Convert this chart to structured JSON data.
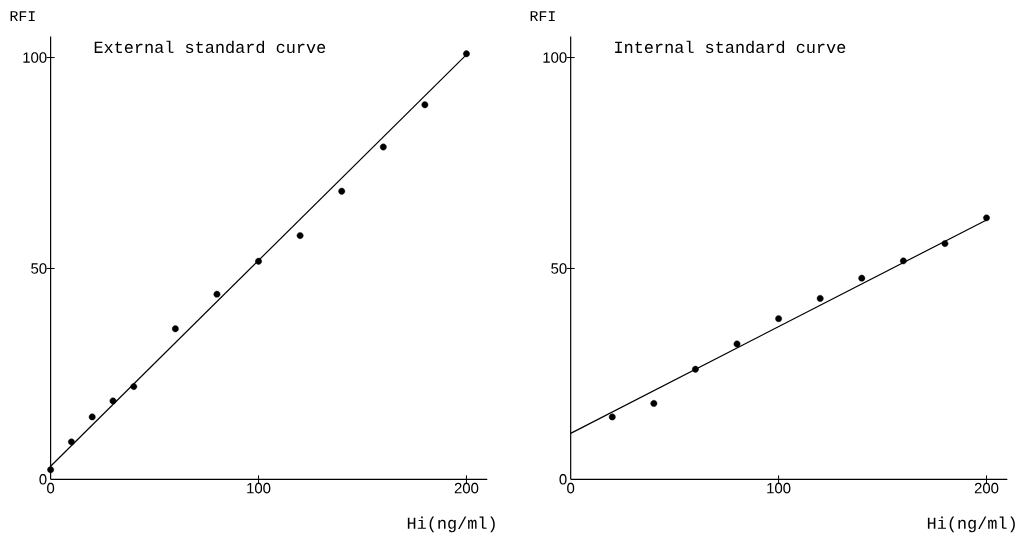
{
  "chart_data": [
    {
      "type": "scatter",
      "title": "External standard curve",
      "xlabel": "Hi(ng/ml)",
      "ylabel": "RFI",
      "xlim": [
        0,
        210
      ],
      "ylim": [
        0,
        105
      ],
      "xticks": [
        0,
        100,
        200
      ],
      "yticks": [
        0,
        50,
        100
      ],
      "series": [
        {
          "color": "#000000",
          "marker": "circle",
          "x": [
            0,
            10,
            20,
            30,
            40,
            60,
            80,
            100,
            120,
            140,
            160,
            180,
            200
          ],
          "values": [
            2.3,
            8.9,
            14.8,
            18.6,
            22.0,
            35.7,
            43.9,
            51.7,
            57.8,
            68.3,
            78.8,
            88.8,
            100.9
          ]
        },
        {
          "type": "line",
          "color": "#000000",
          "marker": "none",
          "x": [
            0,
            200
          ],
          "values": [
            3.1,
            100.7
          ]
        }
      ]
    },
    {
      "type": "scatter",
      "title": "Internal standard curve",
      "xlabel": "Hi(ng/ml)",
      "ylabel": "RFI",
      "xlim": [
        0,
        210
      ],
      "ylim": [
        0,
        105
      ],
      "xticks": [
        0,
        100,
        200
      ],
      "yticks": [
        0,
        50,
        100
      ],
      "series": [
        {
          "color": "#000000",
          "marker": "circle",
          "x": [
            20,
            40,
            60,
            80,
            100,
            120,
            140,
            160,
            180,
            200
          ],
          "values": [
            14.8,
            18.0,
            26.1,
            32.1,
            38.1,
            42.9,
            47.7,
            51.8,
            55.9,
            62.0
          ]
        },
        {
          "type": "line",
          "color": "#000000",
          "marker": "none",
          "x": [
            0,
            200
          ],
          "values": [
            10.9,
            61.5
          ]
        }
      ]
    }
  ]
}
